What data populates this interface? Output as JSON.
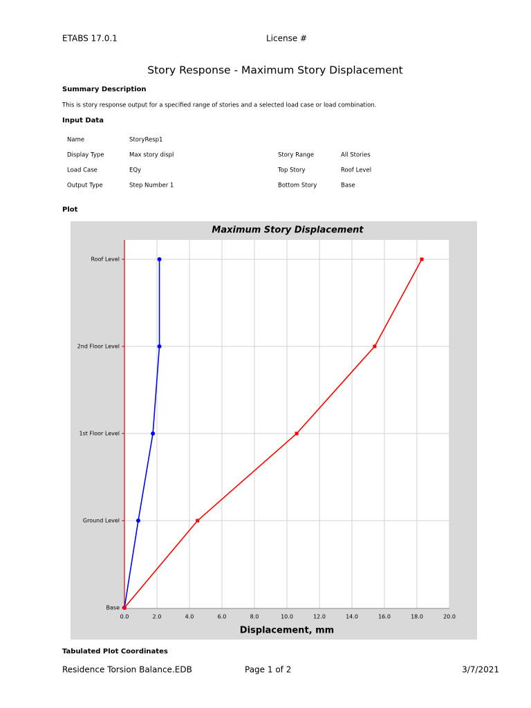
{
  "header": {
    "software": "ETABS 17.0.1",
    "license": "License #"
  },
  "title": "Story Response - Maximum Story Displacement",
  "summary": {
    "heading": "Summary Description",
    "text": "This is story response output for a specified range of stories and a selected load case or load combination."
  },
  "input_data": {
    "heading": "Input Data",
    "left": [
      [
        "Name",
        "StoryResp1"
      ],
      [
        "Display Type",
        "Max story displ"
      ],
      [
        "Load Case",
        "EQy"
      ],
      [
        "Output Type",
        "Step Number 1"
      ]
    ],
    "right": [
      [
        "Story Range",
        "All Stories"
      ],
      [
        "Top Story",
        "Roof Level"
      ],
      [
        "Bottom Story",
        "Base"
      ]
    ]
  },
  "plot_heading": "Plot",
  "chart_data": {
    "type": "line",
    "title": "Maximum Story Displacement",
    "xlabel": "Displacement, mm",
    "categories": [
      "Base",
      "Ground Level",
      "1st Floor Level",
      "2nd Floor Level",
      "Roof Level"
    ],
    "series": [
      {
        "color": "#0000ff",
        "marker": "circle",
        "values": [
          0,
          0.85,
          1.75,
          2.15,
          2.15
        ]
      },
      {
        "color": "#ff0000",
        "marker": "square",
        "values": [
          0,
          4.5,
          10.6,
          15.4,
          18.3
        ]
      }
    ],
    "xlim": [
      0,
      20
    ],
    "xticks": [
      {
        "value": 0,
        "label": "0.0"
      },
      {
        "value": 2,
        "label": "2.0"
      },
      {
        "value": 4,
        "label": "4.0"
      },
      {
        "value": 6,
        "label": "6.0"
      },
      {
        "value": 8,
        "label": "8.0"
      },
      {
        "value": 10,
        "label": "10.0"
      },
      {
        "value": 12,
        "label": "12.0"
      },
      {
        "value": 14,
        "label": "14.0"
      },
      {
        "value": 16,
        "label": "16.0"
      },
      {
        "value": 18,
        "label": "18.0"
      },
      {
        "value": 20,
        "label": "20.0"
      }
    ],
    "grid": true
  },
  "tabulated_heading": "Tabulated Plot Coordinates",
  "footer": {
    "file": "Residence Torsion Balance.EDB",
    "page": "Page 1 of 2",
    "date": "3/7/2021"
  }
}
